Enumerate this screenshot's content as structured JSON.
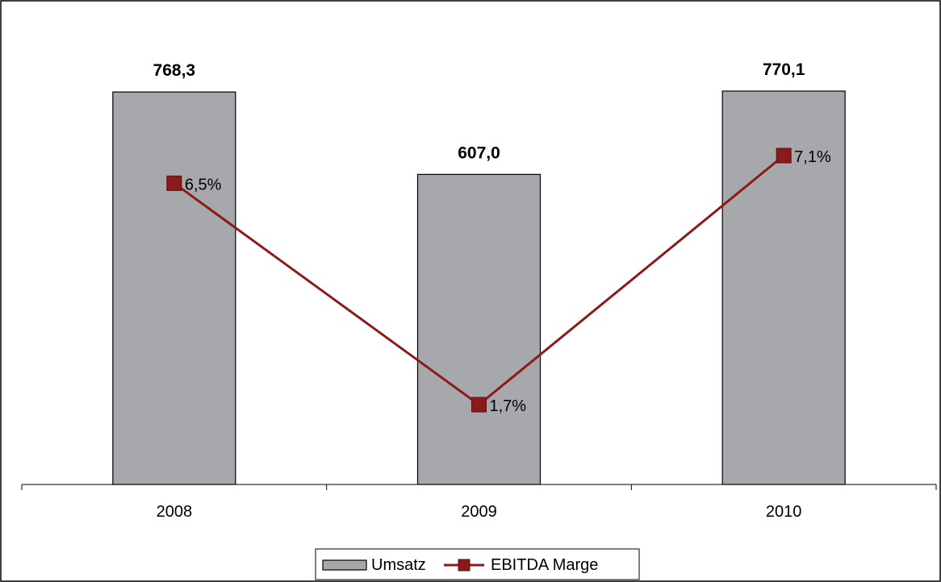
{
  "chart_data": {
    "type": "bar",
    "categories": [
      "2008",
      "2009",
      "2010"
    ],
    "series": [
      {
        "name": "Umsatz",
        "type": "bar",
        "values": [
          768.3,
          607.0,
          770.1
        ],
        "labels": [
          "768,3",
          "607,0",
          "770,1"
        ],
        "color": "#a6a8ab"
      },
      {
        "name": "EBITDA Marge",
        "type": "line",
        "values": [
          6.5,
          1.7,
          7.1
        ],
        "labels": [
          "6,5%",
          "1,7%",
          "7,1%"
        ],
        "color": "#8b1a1a"
      }
    ],
    "legend_position": "bottom",
    "grid": false
  },
  "legend": {
    "items": [
      "Umsatz",
      "EBITDA Marge"
    ]
  }
}
